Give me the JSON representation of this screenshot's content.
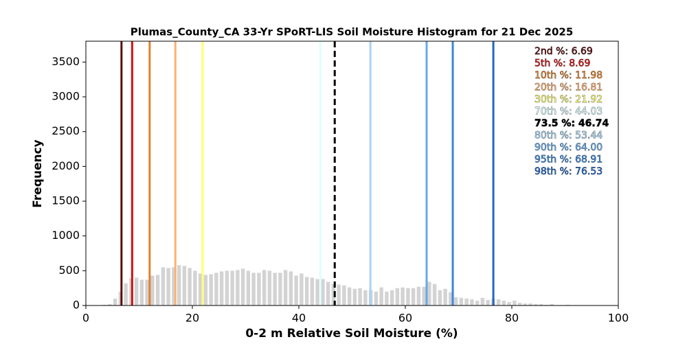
{
  "chart_data": {
    "type": "histogram",
    "title": "Plumas_County_CA 33-Yr SPoRT-LIS Soil Moisture Histogram for 21 Dec 2025",
    "xlabel": "0-2 m Relative Soil Moisture (%)",
    "ylabel": "Frequency",
    "color": "#d3d3d3",
    "bins": [
      3,
      4,
      5,
      6,
      7,
      8,
      9,
      10,
      11,
      12,
      13,
      14,
      15,
      16,
      17,
      18,
      19,
      20,
      21,
      22,
      23,
      24,
      25,
      26,
      27,
      28,
      29,
      30,
      31,
      32,
      33,
      34,
      35,
      36,
      37,
      38,
      39,
      40,
      41,
      42,
      43,
      44,
      45,
      46,
      47,
      48,
      49,
      50,
      51,
      52,
      53,
      54,
      55,
      56,
      57,
      58,
      59,
      60,
      61,
      62,
      63,
      64,
      65,
      66,
      67,
      68,
      69,
      70,
      71,
      72,
      73,
      74,
      75,
      76,
      77,
      78,
      79,
      80,
      81,
      82,
      83,
      84,
      85,
      86,
      87,
      88,
      89,
      90,
      91
    ],
    "values": [
      10,
      20,
      100,
      200,
      320,
      390,
      400,
      370,
      370,
      430,
      440,
      550,
      540,
      550,
      580,
      570,
      540,
      500,
      460,
      440,
      450,
      470,
      490,
      500,
      500,
      510,
      530,
      500,
      470,
      470,
      510,
      500,
      470,
      470,
      510,
      490,
      430,
      460,
      410,
      400,
      380,
      380,
      340,
      310,
      300,
      290,
      260,
      240,
      250,
      220,
      220,
      200,
      260,
      200,
      220,
      250,
      260,
      250,
      250,
      270,
      270,
      340,
      310,
      220,
      240,
      190,
      120,
      110,
      100,
      90,
      70,
      110,
      80,
      100,
      90,
      70,
      50,
      70,
      40,
      30,
      30,
      20,
      20,
      10,
      20,
      5,
      5,
      10
    ],
    "xlim": [
      0,
      100
    ],
    "xticks": [
      0,
      20,
      40,
      60,
      80,
      100
    ],
    "ylim": [
      0,
      3800
    ],
    "yticks": [
      0,
      500,
      1000,
      1500,
      2000,
      2500,
      3000,
      3500
    ],
    "percentiles": [
      {
        "label": "2nd %: 6.69",
        "value": 6.69,
        "color": "#5c0a0a"
      },
      {
        "label": "5th %: 8.69",
        "value": 8.69,
        "color": "#d40f0f"
      },
      {
        "label": "10th %: 11.98",
        "value": 11.98,
        "color": "#e0802a"
      },
      {
        "label": "20th %: 16.81",
        "value": 16.81,
        "color": "#ffb070"
      },
      {
        "label": "30th %: 21.92",
        "value": 21.92,
        "color": "#ffff70"
      },
      {
        "label": "70th %: 44.03",
        "value": 44.03,
        "color": "#e0ffff"
      },
      {
        "label": "73.5 %: 46.74",
        "value": 46.74,
        "color": "#000000",
        "dashed": true
      },
      {
        "label": "80th %: 53.44",
        "value": 53.44,
        "color": "#a8d4f2"
      },
      {
        "label": "90th %: 64.00",
        "value": 64.0,
        "color": "#64aaea"
      },
      {
        "label": "95th %: 68.91",
        "value": 68.91,
        "color": "#3a86dc"
      },
      {
        "label": "98th %: 76.53",
        "value": 76.53,
        "color": "#2266c4"
      }
    ]
  }
}
